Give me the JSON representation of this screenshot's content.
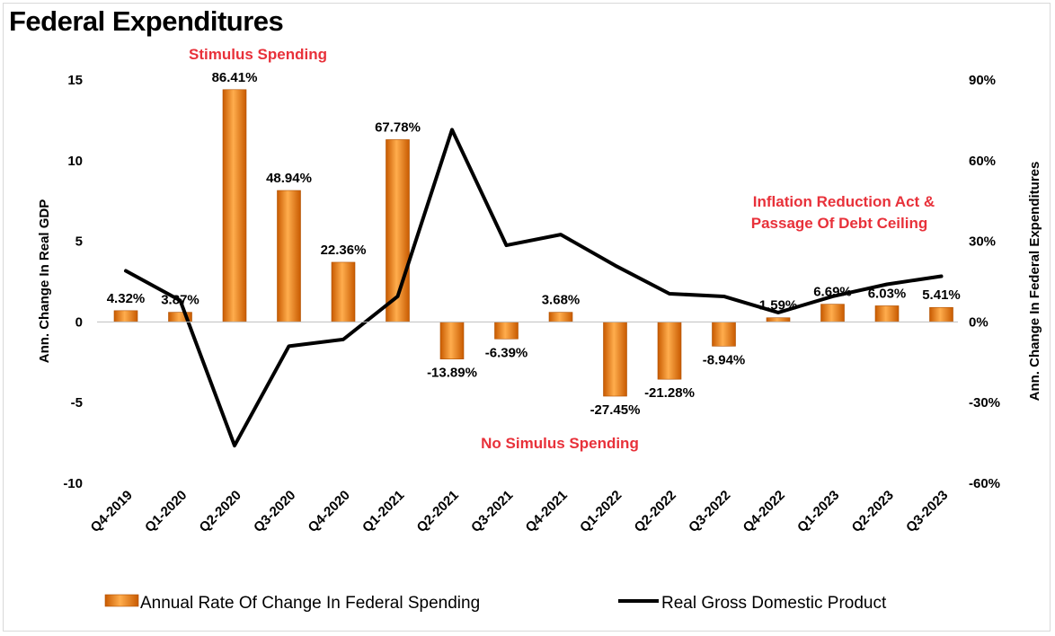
{
  "title": "Federal Expenditures",
  "chart_data": {
    "type": "bar+line",
    "categories": [
      "Q4-2019",
      "Q1-2020",
      "Q2-2020",
      "Q3-2020",
      "Q4-2020",
      "Q1-2021",
      "Q2-2021",
      "Q3-2021",
      "Q4-2021",
      "Q1-2022",
      "Q2-2022",
      "Q3-2022",
      "Q4-2022",
      "Q1-2023",
      "Q2-2023",
      "Q3-2023"
    ],
    "series": [
      {
        "name": "Annual Rate Of Change In Federal Spending",
        "type": "bar",
        "axis": "left",
        "values": [
          0.7,
          0.6,
          14.4,
          8.15,
          3.7,
          11.3,
          -2.3,
          -1.05,
          0.6,
          -4.6,
          -3.55,
          -1.5,
          0.26,
          1.1,
          1.0,
          0.9
        ],
        "labels": [
          "4.32%",
          "3.87%",
          "86.41%",
          "48.94%",
          "22.36%",
          "67.78%",
          "-13.89%",
          "-6.39%",
          "3.68%",
          "-27.45%",
          "-21.28%",
          "-8.94%",
          "1.59%",
          "6.69%",
          "6.03%",
          "5.41%"
        ],
        "color": "#f07f0d"
      },
      {
        "name": "Real Gross Domestic Product",
        "type": "line",
        "axis": "right",
        "values": [
          19,
          8,
          -46,
          -9,
          -6.5,
          9.5,
          71.5,
          28.5,
          32.5,
          21,
          10.5,
          9.5,
          3.5,
          9.5,
          14,
          17
        ],
        "color": "#000000"
      }
    ],
    "left_axis": {
      "label": "Ann. Change In Real GDP",
      "min": -10,
      "max": 15,
      "ticks": [
        "15",
        "10",
        "5",
        "0",
        "-5",
        "-10"
      ],
      "tick_values": [
        15,
        10,
        5,
        0,
        -5,
        -10
      ]
    },
    "right_axis": {
      "label": "Ann. Change In Federal Expenditures",
      "min": -60,
      "max": 90,
      "ticks": [
        "90%",
        "60%",
        "30%",
        "0%",
        "-30%",
        "-60%"
      ],
      "tick_values": [
        90,
        60,
        30,
        0,
        -30,
        -60
      ]
    },
    "annotations": [
      {
        "text": "Stimulus Spending"
      },
      {
        "text": "No Simulus Spending"
      },
      {
        "text": "Inflation Reduction Act &"
      },
      {
        "text": "Passage Of Debt Ceiling"
      }
    ],
    "legend_position": "bottom",
    "grid": false
  },
  "legend": {
    "bar_label": "Annual Rate Of Change In Federal Spending",
    "line_label": "Real Gross Domestic Product"
  }
}
